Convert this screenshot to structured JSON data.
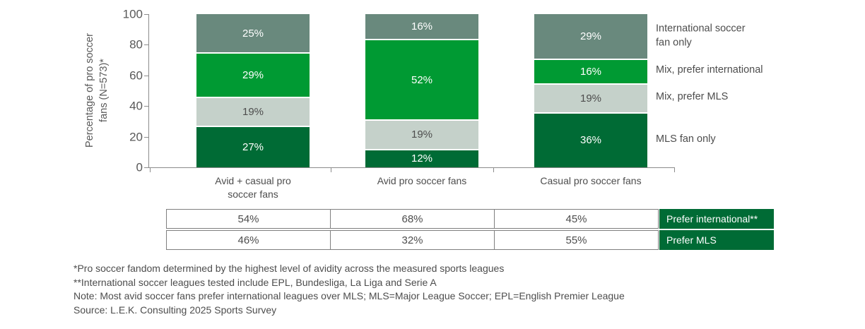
{
  "chart_data": {
    "type": "bar",
    "stacked": true,
    "title": "",
    "ylabel": "Percentage of pro soccer\nfans (N=573)*",
    "ylim": [
      0,
      100
    ],
    "yticks": [
      0,
      20,
      40,
      60,
      80,
      100
    ],
    "grid": false,
    "legend_position": "right",
    "value_suffix": "%",
    "categories": [
      "Avid + casual pro\nsoccer fans",
      "Avid pro soccer fans",
      "Casual pro soccer fans"
    ],
    "series": [
      {
        "name": "MLS fan only",
        "legend": "MLS fan only",
        "color": "#006B35",
        "text_color": "#FFFFFF",
        "values": [
          27,
          12,
          36
        ]
      },
      {
        "name": "Mix, prefer MLS",
        "legend": "Mix, prefer MLS",
        "color": "#C5D1CA",
        "text_color": "#4D4D4D",
        "values": [
          19,
          19,
          19
        ]
      },
      {
        "name": "Mix, prefer international",
        "legend": "Mix, prefer international",
        "color": "#009A33",
        "text_color": "#FFFFFF",
        "values": [
          29,
          52,
          16
        ]
      },
      {
        "name": "International soccer fan only",
        "legend": "International soccer\nfan only",
        "color": "#69897D",
        "text_color": "#FFFFFF",
        "values": [
          25,
          16,
          29
        ]
      }
    ]
  },
  "summary_table": {
    "rows": [
      {
        "label": "Prefer international**",
        "values": [
          "54%",
          "68%",
          "45%"
        ]
      },
      {
        "label": "Prefer MLS",
        "values": [
          "46%",
          "32%",
          "55%"
        ]
      }
    ],
    "label_bg": "#006B35",
    "label_text_color": "#FFFFFF"
  },
  "footnotes": [
    "*Pro soccer fandom determined by the highest level of avidity across the measured sports leagues",
    "**International soccer leagues tested include EPL, Bundesliga, La Liga and Serie A",
    "Note: Most avid soccer fans prefer international leagues over MLS; MLS=Major League Soccer; EPL=English Premier League",
    "Source: L.E.K. Consulting 2025 Sports Survey"
  ],
  "colors": {
    "axis": "#8C8C8C",
    "tick_label": "#595959",
    "body_text": "#4D4D4D",
    "table_border": "#7F7F7F"
  }
}
